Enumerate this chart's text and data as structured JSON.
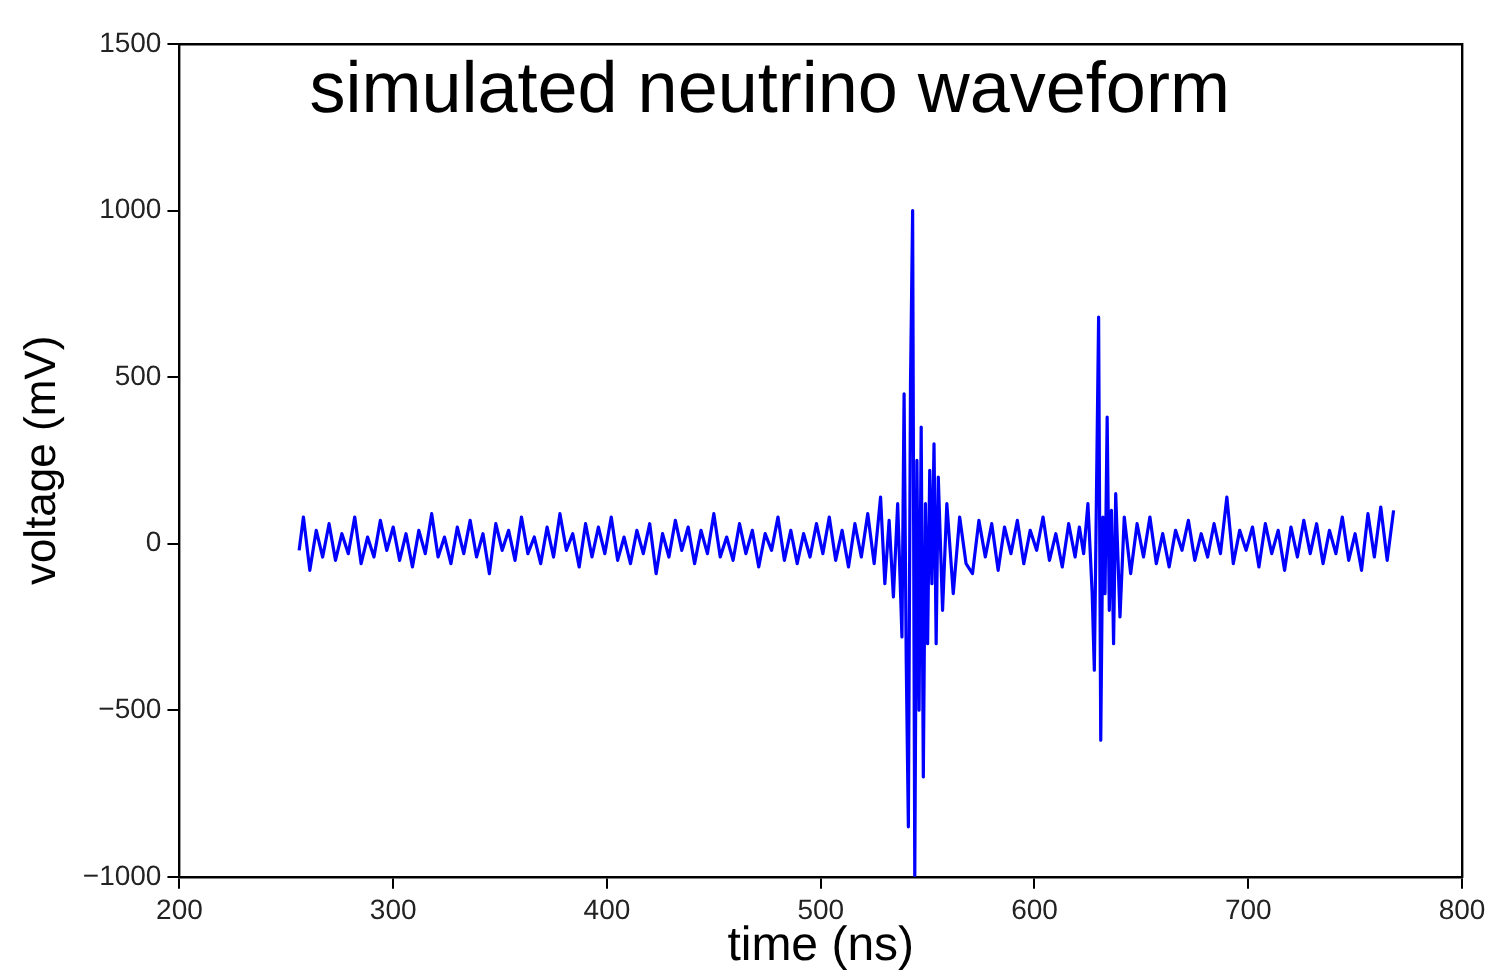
{
  "chart_data": {
    "type": "line",
    "title": "simulated neutrino waveform",
    "xlabel": "time (ns)",
    "ylabel": "voltage (mV)",
    "xlim": [
      200,
      800
    ],
    "xticks": [
      200,
      300,
      400,
      500,
      600,
      700,
      800
    ],
    "ylim": [
      -1000,
      1500
    ],
    "yticks": [
      -1000,
      -500,
      0,
      500,
      1000,
      1500
    ],
    "grid": false,
    "legend": false,
    "marker": "none",
    "line_style": "solid",
    "series": [
      {
        "color": "#0000ff",
        "x": [
          256,
          258,
          261,
          264,
          267,
          270,
          273,
          276,
          279,
          282,
          285,
          288,
          291,
          294,
          297,
          300,
          303,
          306,
          309,
          312,
          315,
          318,
          321,
          324,
          327,
          330,
          333,
          336,
          339,
          342,
          345,
          348,
          351,
          354,
          357,
          360,
          363,
          366,
          369,
          372,
          375,
          378,
          381,
          384,
          387,
          390,
          393,
          396,
          399,
          402,
          405,
          408,
          411,
          414,
          417,
          420,
          423,
          426,
          429,
          432,
          435,
          438,
          441,
          444,
          447,
          450,
          453,
          456,
          459,
          462,
          465,
          468,
          471,
          474,
          477,
          480,
          483,
          486,
          489,
          492,
          495,
          498,
          501,
          504,
          507,
          510,
          513,
          516,
          519,
          522,
          525,
          528,
          530,
          532,
          534,
          536,
          538,
          539,
          540,
          541,
          542,
          543,
          544,
          545,
          546,
          547,
          548,
          549,
          550,
          551,
          552,
          553,
          554,
          555,
          557,
          559,
          562,
          565,
          568,
          571,
          574,
          577,
          580,
          583,
          586,
          589,
          592,
          595,
          598,
          601,
          604,
          607,
          610,
          613,
          616,
          619,
          621,
          623,
          625,
          627,
          628,
          629,
          630,
          631,
          632,
          633,
          634,
          635,
          636,
          637,
          638,
          640,
          642,
          645,
          648,
          651,
          654,
          657,
          660,
          663,
          666,
          669,
          672,
          675,
          678,
          681,
          684,
          687,
          690,
          693,
          696,
          699,
          702,
          705,
          708,
          711,
          714,
          717,
          720,
          723,
          726,
          729,
          732,
          735,
          738,
          741,
          744,
          747,
          750,
          753,
          756,
          759,
          762,
          765,
          768
        ],
        "values": [
          -20,
          80,
          -80,
          40,
          -40,
          60,
          -50,
          30,
          -30,
          80,
          -60,
          20,
          -40,
          70,
          -20,
          50,
          -50,
          30,
          -70,
          40,
          -30,
          90,
          -40,
          20,
          -60,
          50,
          -30,
          70,
          -40,
          30,
          -90,
          60,
          -20,
          40,
          -50,
          80,
          -30,
          20,
          -60,
          50,
          -40,
          90,
          -20,
          30,
          -70,
          60,
          -40,
          50,
          -30,
          80,
          -50,
          20,
          -60,
          40,
          -30,
          60,
          -90,
          30,
          -40,
          70,
          -20,
          50,
          -60,
          40,
          -30,
          90,
          -40,
          20,
          -50,
          60,
          -30,
          40,
          -70,
          30,
          -20,
          80,
          -50,
          40,
          -60,
          30,
          -40,
          60,
          -30,
          80,
          -50,
          40,
          -70,
          60,
          -40,
          90,
          -60,
          140,
          -120,
          70,
          -160,
          120,
          -280,
          450,
          -350,
          -850,
          480,
          1000,
          -1000,
          250,
          -500,
          350,
          -700,
          120,
          -300,
          220,
          -120,
          300,
          -300,
          200,
          -200,
          120,
          -150,
          80,
          -60,
          -90,
          70,
          -40,
          60,
          -80,
          50,
          -30,
          70,
          -60,
          40,
          -20,
          80,
          -50,
          30,
          -70,
          60,
          -40,
          50,
          -30,
          120,
          -150,
          -380,
          150,
          680,
          -590,
          80,
          -150,
          380,
          -200,
          100,
          -300,
          150,
          -220,
          80,
          -90,
          60,
          -40,
          80,
          -60,
          30,
          -70,
          40,
          -20,
          70,
          -50,
          30,
          -40,
          60,
          -30,
          140,
          -60,
          40,
          -20,
          50,
          -70,
          60,
          -30,
          40,
          -80,
          50,
          -40,
          70,
          -30,
          60,
          -60,
          40,
          -30,
          80,
          -50,
          30,
          -80,
          90,
          -40,
          110,
          -50,
          100
        ]
      }
    ]
  }
}
